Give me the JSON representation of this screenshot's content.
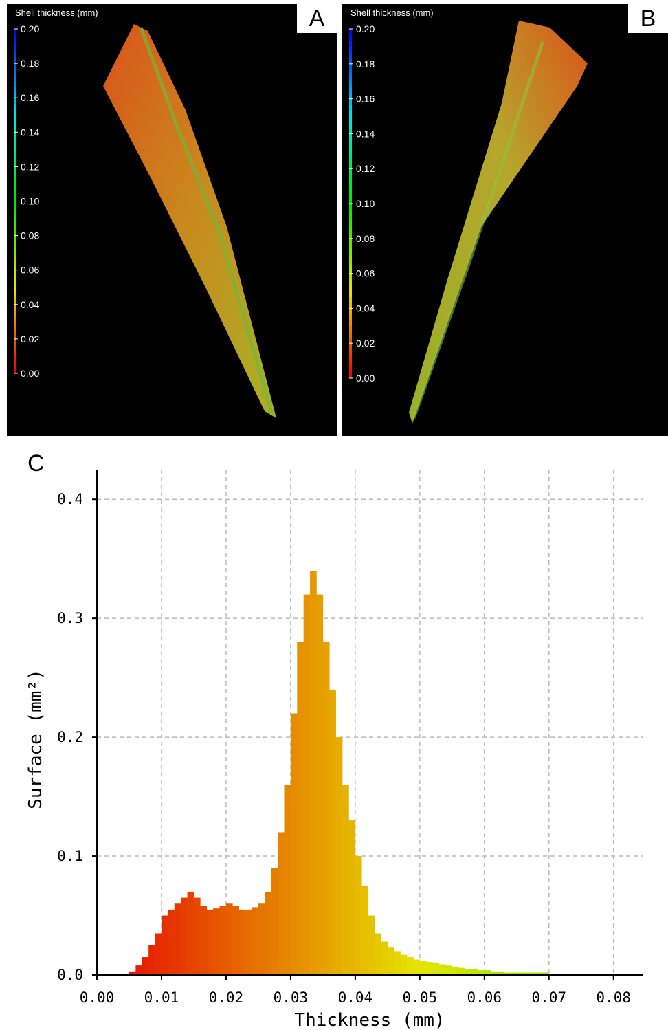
{
  "panels": [
    {
      "label": "A",
      "colorbar_title": "Shell thickness (mm)",
      "colorbar_ticks": [
        {
          "value": 0.2,
          "label": "0.20"
        },
        0.18,
        0.16,
        0.14,
        0.12,
        {
          "value": 0.1,
          "label": "0.10"
        },
        0.08,
        0.06,
        0.04,
        0.02,
        {
          "value": 0,
          "label": "0.00"
        }
      ]
    },
    {
      "label": "B",
      "colorbar_title": "Shell thickness (mm)",
      "colorbar_ticks": [
        {
          "value": 0.2,
          "label": "0.20"
        },
        0.18,
        0.16,
        0.14,
        0.12,
        {
          "value": 0.1,
          "label": "0.10"
        },
        0.08,
        0.06,
        0.04,
        0.02,
        {
          "value": 0,
          "label": "0.00"
        }
      ]
    }
  ],
  "chart_data": {
    "type": "histogram",
    "panel_label": "C",
    "x_label": "Thickness (mm)",
    "y_label": "Surface (mm²)",
    "bins": [
      0.005,
      0.006,
      0.007,
      0.008,
      0.009,
      0.01,
      0.011,
      0.012,
      0.013,
      0.014,
      0.015,
      0.016,
      0.017,
      0.018,
      0.019,
      0.02,
      0.021,
      0.022,
      0.023,
      0.024,
      0.025,
      0.026,
      0.027,
      0.028,
      0.029,
      0.03,
      0.031,
      0.032,
      0.033,
      0.034,
      0.035,
      0.036,
      0.037,
      0.038,
      0.039,
      0.04,
      0.041,
      0.042,
      0.043,
      0.044,
      0.045,
      0.046,
      0.047,
      0.048,
      0.049,
      0.05,
      0.051,
      0.052,
      0.053,
      0.054,
      0.055,
      0.056,
      0.057,
      0.058,
      0.059,
      0.06,
      0.061,
      0.062,
      0.063,
      0.064,
      0.065,
      0.066,
      0.067,
      0.068,
      0.069,
      0.07
    ],
    "values": [
      0.003,
      0.008,
      0.015,
      0.025,
      0.035,
      0.05,
      0.055,
      0.06,
      0.065,
      0.07,
      0.065,
      0.058,
      0.055,
      0.056,
      0.058,
      0.06,
      0.058,
      0.055,
      0.055,
      0.057,
      0.06,
      0.07,
      0.09,
      0.12,
      0.16,
      0.22,
      0.28,
      0.32,
      0.34,
      0.32,
      0.28,
      0.24,
      0.2,
      0.16,
      0.13,
      0.1,
      0.075,
      0.05,
      0.035,
      0.028,
      0.023,
      0.02,
      0.017,
      0.015,
      0.013,
      0.012,
      0.011,
      0.01,
      0.009,
      0.008,
      0.007,
      0.006,
      0.005,
      0.005,
      0.004,
      0.004,
      0.003,
      0.003,
      0.002,
      0.002,
      0.002,
      0.002,
      0.002,
      0.002,
      0.002
    ],
    "xlim": [
      0,
      0.0845
    ],
    "ylim": [
      0,
      0.425
    ],
    "xticks": [
      {
        "value": 0,
        "label": "0.00"
      },
      0.01,
      0.02,
      0.03,
      0.04,
      0.05,
      0.06,
      0.07,
      0.08
    ],
    "yticks": [
      {
        "value": 0,
        "label": "0.0"
      },
      0.1,
      0.2,
      0.3,
      0.4
    ],
    "grid": true
  }
}
